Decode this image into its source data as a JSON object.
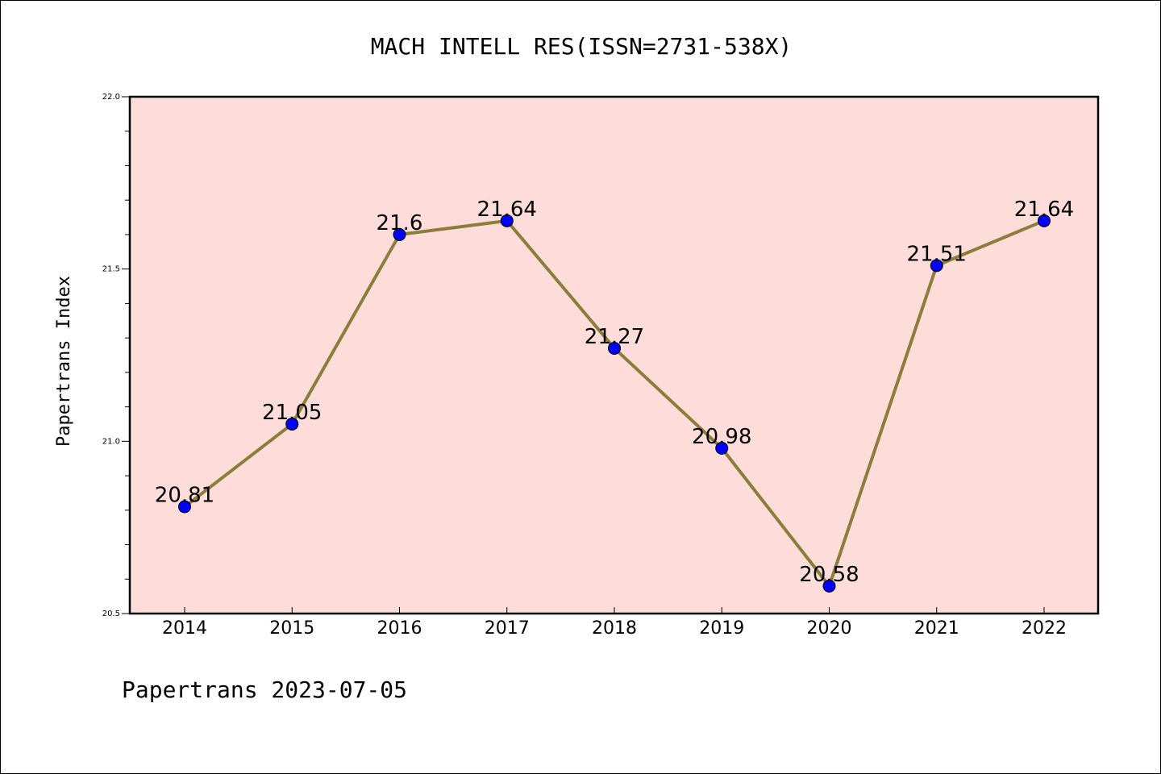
{
  "chart_data": {
    "type": "line",
    "title": "MACH INTELL RES(ISSN=2731-538X)",
    "xlabel": "",
    "ylabel": "Papertrans Index",
    "categories": [
      "2014",
      "2015",
      "2016",
      "2017",
      "2018",
      "2019",
      "2020",
      "2021",
      "2022"
    ],
    "series": [
      {
        "values": [
          20.81,
          21.05,
          21.6,
          21.64,
          21.27,
          20.98,
          20.58,
          21.51,
          21.64
        ]
      }
    ],
    "data_labels": [
      "20.81",
      "21.05",
      "21.6",
      "21.64",
      "21.27",
      "20.98",
      "20.58",
      "21.51",
      "21.64"
    ],
    "ylim": [
      20.5,
      22.0
    ],
    "yticks": [
      "20.5",
      "21.0",
      "21.5",
      "22.0"
    ],
    "grid": false,
    "plot_background": "#fddcd9",
    "line_color": "#8b7d3a",
    "marker_color": "#0000ff",
    "footer": "Papertrans 2023-07-05"
  }
}
